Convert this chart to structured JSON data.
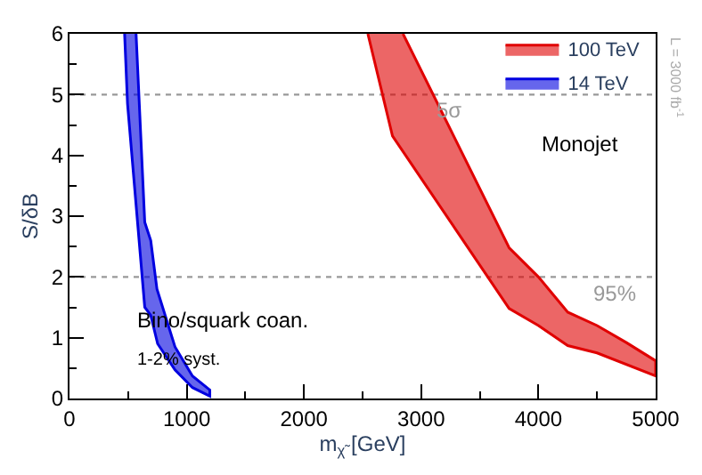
{
  "chart_data": {
    "type": "area",
    "xlabel": "m$_{χ̃}$ [GeV]",
    "ylabel": "S/δB",
    "xlim": [
      0,
      5000
    ],
    "ylim": [
      0,
      6
    ],
    "xticks": [
      0,
      1000,
      2000,
      3000,
      4000,
      5000
    ],
    "yticks": [
      0,
      1,
      2,
      3,
      4,
      5,
      6
    ],
    "grid": false,
    "legend": "top right",
    "marker": "none",
    "series": [
      {
        "name": "14 TeV",
        "color": "#0000e0",
        "x": [
          470,
          495,
          642,
          693,
          752,
          900,
          1049,
          1197,
          1197,
          1049,
          900,
          746,
          693,
          642,
          568
        ],
        "values": [
          6,
          4.85,
          1.5,
          1.37,
          0.9,
          0.47,
          0.18,
          0.04,
          0.14,
          0.37,
          0.85,
          1.8,
          2.6,
          2.9,
          6
        ]
      },
      {
        "name": "100 TeV",
        "color": "#e00000",
        "x": [
          2545,
          2755,
          3750,
          4000,
          4250,
          4500,
          5000,
          5000,
          4750,
          4500,
          4250,
          4000,
          3750,
          2845
        ],
        "values": [
          6,
          4.32,
          1.48,
          1.2,
          0.87,
          0.75,
          0.37,
          0.62,
          0.92,
          1.2,
          1.42,
          2.0,
          2.48,
          6
        ]
      }
    ],
    "ref_lines": [
      {
        "axis": "y",
        "value": 5,
        "color": "#999999",
        "line_style": "dotted"
      },
      {
        "axis": "y",
        "value": 2,
        "color": "#999999",
        "line_style": "dotted"
      }
    ],
    "annotations": [
      "Bino/squark coan.",
      "1-2% syst.",
      "Monojet",
      "L = 3000 fb$^{-1}$",
      {
        "text": "5σ",
        "x": 3250,
        "y": 5
      },
      {
        "text": "95%",
        "x": 4650,
        "y": 2
      }
    ]
  }
}
